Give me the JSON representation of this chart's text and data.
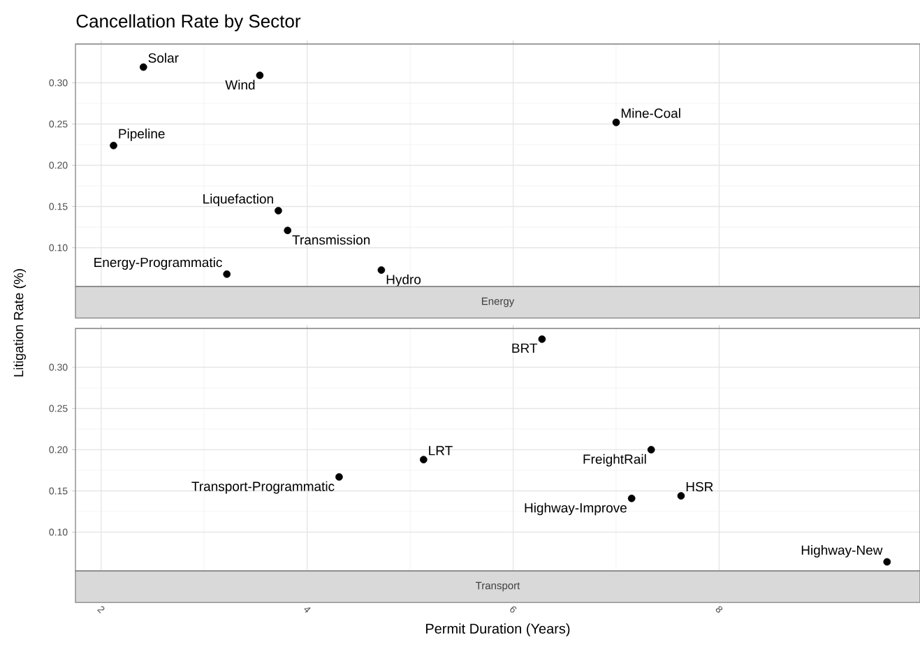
{
  "chart_data": [
    {
      "type": "scatter",
      "title": "Cancellation Rate by Sector",
      "subtitle": "Energy",
      "ylabel": "Litigation Rate (%)",
      "x": [
        2.41,
        3.54,
        7.0,
        2.12,
        3.72,
        3.81,
        3.22,
        4.72
      ],
      "values": [
        0.319,
        0.309,
        0.252,
        0.224,
        0.145,
        0.121,
        0.068,
        0.073
      ],
      "color": "#000000",
      "marker": "circle",
      "grid": true,
      "tick_labels": "y",
      "annotations": [
        {
          "text": "Solar",
          "x": 2.41,
          "y": 0.319
        },
        {
          "text": "Wind",
          "x": 3.54,
          "y": 0.309
        },
        {
          "text": "Mine-Coal",
          "x": 7.0,
          "y": 0.252
        },
        {
          "text": "Pipeline",
          "x": 2.12,
          "y": 0.224
        },
        {
          "text": "Liquefaction",
          "x": 3.72,
          "y": 0.145
        },
        {
          "text": "Transmission",
          "x": 3.81,
          "y": 0.121
        },
        {
          "text": "Energy-Programmatic",
          "x": 3.22,
          "y": 0.068
        },
        {
          "text": "Hydro",
          "x": 4.72,
          "y": 0.073
        }
      ],
      "xlim": [
        1.75,
        9.95
      ],
      "ylim": [
        0.053,
        0.347
      ],
      "xticks": [
        2,
        4,
        6,
        8
      ],
      "yticks": [
        {
          "value": 0.1,
          "label": "0.10"
        },
        {
          "value": 0.15,
          "label": "0.15"
        },
        {
          "value": 0.2,
          "label": "0.20"
        },
        {
          "value": 0.25,
          "label": "0.25"
        },
        {
          "value": 0.3,
          "label": "0.30"
        }
      ]
    },
    {
      "type": "scatter",
      "subtitle": "Transport",
      "xlabel": "Permit Duration (Years)",
      "x": [
        6.28,
        5.13,
        4.31,
        7.34,
        7.15,
        7.63,
        9.63
      ],
      "values": [
        0.334,
        0.188,
        0.167,
        0.2,
        0.141,
        0.144,
        0.064
      ],
      "color": "#000000",
      "marker": "circle",
      "grid": true,
      "annotations": [
        {
          "text": "BRT",
          "x": 6.28,
          "y": 0.334
        },
        {
          "text": "LRT",
          "x": 5.13,
          "y": 0.188
        },
        {
          "text": "Transport-Programmatic",
          "x": 4.31,
          "y": 0.167
        },
        {
          "text": "FreightRail",
          "x": 7.34,
          "y": 0.2
        },
        {
          "text": "Highway-Improve",
          "x": 7.15,
          "y": 0.141
        },
        {
          "text": "HSR",
          "x": 7.63,
          "y": 0.144
        },
        {
          "text": "Highway-New",
          "x": 9.63,
          "y": 0.064
        }
      ],
      "xlim": [
        1.75,
        9.95
      ],
      "ylim": [
        0.053,
        0.347
      ],
      "xticks": [
        2,
        4,
        6,
        8
      ],
      "yticks": [
        {
          "value": 0.1,
          "label": "0.10"
        },
        {
          "value": 0.15,
          "label": "0.15"
        },
        {
          "value": 0.2,
          "label": "0.20"
        },
        {
          "value": 0.25,
          "label": "0.25"
        },
        {
          "value": 0.3,
          "label": "0.30"
        }
      ]
    }
  ]
}
